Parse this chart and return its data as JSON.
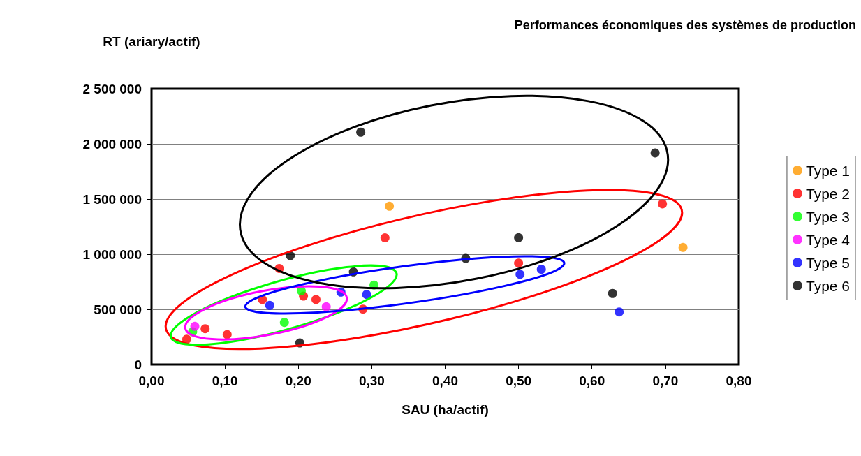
{
  "chart_data": {
    "type": "scatter",
    "title": "Performances économiques des systèmes de production",
    "xlabel": "SAU (ha/actif)",
    "ylabel": "RT (ariary/actif)",
    "xlim": [
      0,
      0.8
    ],
    "xticks": [
      {
        "value": 0,
        "label": "0,00"
      },
      {
        "value": 0.1,
        "label": "0,10"
      },
      {
        "value": 0.2,
        "label": "0,20"
      },
      {
        "value": 0.3,
        "label": "0,30"
      },
      {
        "value": 0.4,
        "label": "0,40"
      },
      {
        "value": 0.5,
        "label": "0,50"
      },
      {
        "value": 0.6,
        "label": "0,60"
      },
      {
        "value": 0.7,
        "label": "0,70"
      },
      {
        "value": 0.8,
        "label": "0,80"
      }
    ],
    "ylim": [
      0,
      2500000
    ],
    "yticks": [
      0,
      {
        "value": 500000,
        "label": "500 000"
      },
      {
        "value": 1000000,
        "label": "1 000 000"
      },
      {
        "value": 1500000,
        "label": "1 500 000"
      },
      {
        "value": 2000000,
        "label": "2 000 000"
      },
      {
        "value": 2500000,
        "label": "2 500 000"
      }
    ],
    "grid": "y",
    "legend": "right",
    "marker": "circle",
    "series": [
      {
        "name": "Type 1",
        "color": "#ff9900",
        "x": [
          0.324,
          0.724
        ],
        "values": [
          1435000,
          1061000
        ]
      },
      {
        "name": "Type 2",
        "color": "#ff0000",
        "x": [
          0.048,
          0.073,
          0.103,
          0.151,
          0.174,
          0.207,
          0.224,
          0.288,
          0.318,
          0.5,
          0.696
        ],
        "values": [
          230000,
          325000,
          272000,
          589000,
          871000,
          620000,
          589000,
          502000,
          1148000,
          920000,
          1456000
        ]
      },
      {
        "name": "Type 3",
        "color": "#00ff00",
        "x": [
          0.056,
          0.181,
          0.204,
          0.303
        ],
        "values": [
          297000,
          382000,
          667000,
          720000
        ]
      },
      {
        "name": "Type 4",
        "color": "#ff00ff",
        "x": [
          0.059,
          0.238
        ],
        "values": [
          346000,
          523000
        ]
      },
      {
        "name": "Type 5",
        "color": "#0000ff",
        "x": [
          0.161,
          0.258,
          0.293,
          0.502,
          0.531,
          0.637
        ],
        "values": [
          536000,
          656000,
          635000,
          818000,
          863000,
          477000
        ]
      },
      {
        "name": "Type 6",
        "color": "#000000",
        "x": [
          0.189,
          0.202,
          0.275,
          0.285,
          0.428,
          0.5,
          0.628,
          0.686
        ],
        "values": [
          987000,
          196000,
          840000,
          2106000,
          962000,
          1150000,
          644000,
          1918000
        ]
      }
    ]
  }
}
